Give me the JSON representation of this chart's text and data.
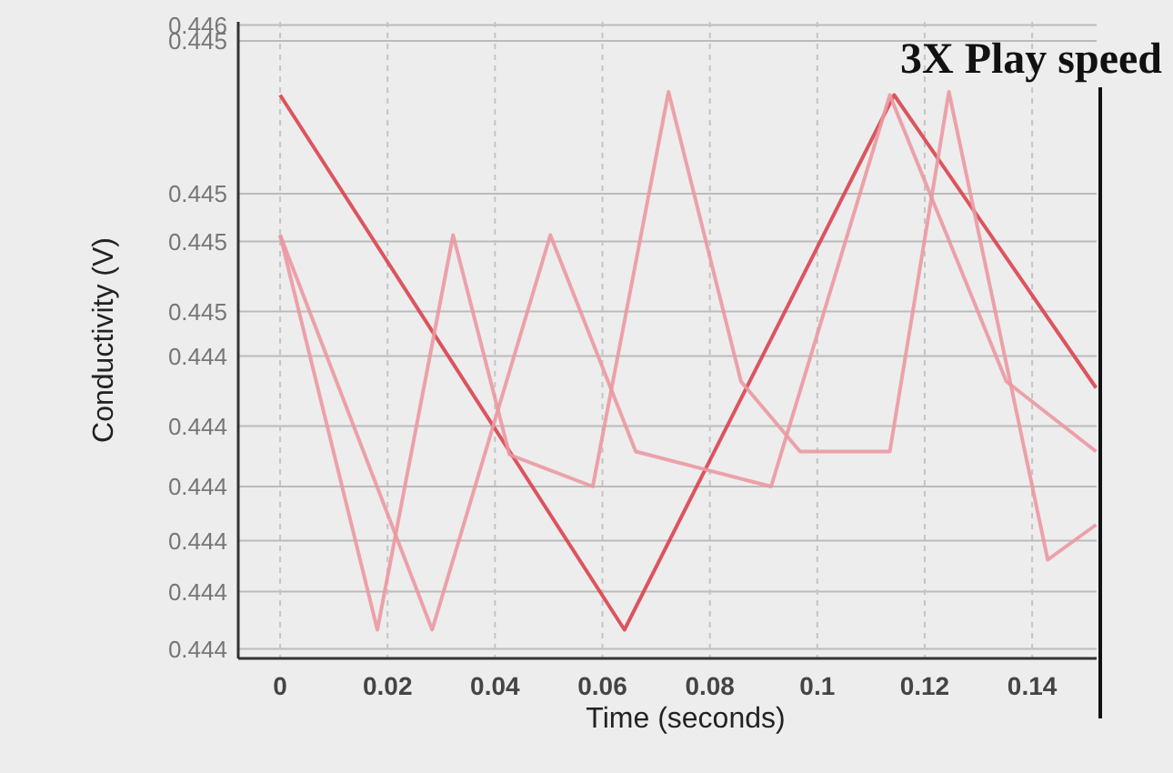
{
  "chart_data": {
    "type": "line",
    "title": "3X Play speed",
    "xlabel": "Time (seconds)",
    "ylabel": "Conductivity (V)",
    "xlim": [
      -0.0078,
      0.152
    ],
    "xticks": [
      0,
      0.02,
      0.04,
      0.06,
      0.08,
      0.1,
      0.12,
      0.14
    ],
    "ylim": [
      0.44353,
      0.44553
    ],
    "yticks": [
      {
        "value": 0.44552,
        "label": "0.446"
      },
      {
        "value": 0.44547,
        "label": "0.445"
      },
      {
        "value": 0.44499,
        "label": "0.445"
      },
      {
        "value": 0.44484,
        "label": "0.445"
      },
      {
        "value": 0.44462,
        "label": "0.445"
      },
      {
        "value": 0.44448,
        "label": "0.444"
      },
      {
        "value": 0.44426,
        "label": "0.444"
      },
      {
        "value": 0.44407,
        "label": "0.444"
      },
      {
        "value": 0.4439,
        "label": "0.444"
      },
      {
        "value": 0.44374,
        "label": "0.444"
      },
      {
        "value": 0.44356,
        "label": "0.444"
      }
    ],
    "grid": true,
    "marker": "none",
    "line_style": "solid",
    "series": [
      {
        "color": "#d9434f",
        "x": [
          0,
          0.0641,
          0.1143,
          0.1519
        ],
        "values": [
          0.4453,
          0.44362,
          0.4453,
          0.44438
        ]
      },
      {
        "color": "#eb98a0",
        "x": [
          0,
          0.0181,
          0.0322,
          0.0427,
          0.0582,
          0.0723,
          0.0858,
          0.0968,
          0.1135,
          0.1245,
          0.1429,
          0.1519
        ],
        "values": [
          0.44486,
          0.44362,
          0.44486,
          0.44417,
          0.44407,
          0.44531,
          0.4444,
          0.44418,
          0.44418,
          0.44531,
          0.44384,
          0.44395
        ]
      },
      {
        "color": "#eb98a0",
        "x": [
          0,
          0.0283,
          0.0503,
          0.0662,
          0.0914,
          0.1135,
          0.1352,
          0.1519
        ],
        "values": [
          0.44486,
          0.44362,
          0.44486,
          0.44418,
          0.44407,
          0.4453,
          0.4444,
          0.44418
        ]
      }
    ]
  }
}
